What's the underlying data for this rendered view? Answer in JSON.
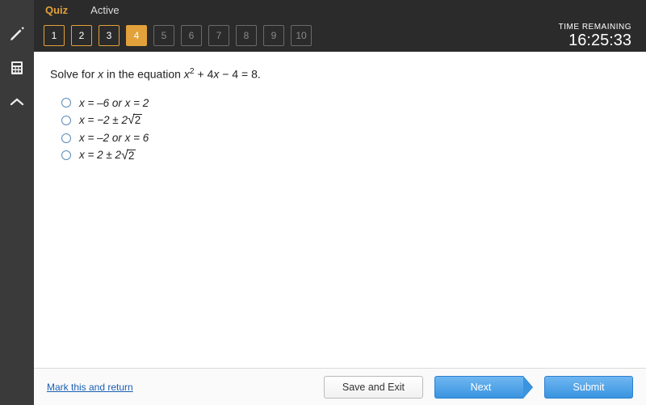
{
  "tabs": {
    "active": "Quiz",
    "other": "Active"
  },
  "timer": {
    "label": "TIME REMAINING",
    "value": "16:25:33"
  },
  "questions": [
    {
      "n": "1",
      "state": "done"
    },
    {
      "n": "2",
      "state": "done"
    },
    {
      "n": "3",
      "state": "done"
    },
    {
      "n": "4",
      "state": "current"
    },
    {
      "n": "5",
      "state": "locked"
    },
    {
      "n": "6",
      "state": "locked"
    },
    {
      "n": "7",
      "state": "locked"
    },
    {
      "n": "8",
      "state": "locked"
    },
    {
      "n": "9",
      "state": "locked"
    },
    {
      "n": "10",
      "state": "locked"
    }
  ],
  "question": {
    "lead": "Solve for ",
    "var": "x",
    "mid": " in the equation ",
    "eq_a": "x",
    "eq_b": "2",
    "eq_c": " + 4",
    "eq_d": "x",
    "eq_e": " − 4 = 8",
    "tail": "."
  },
  "options": {
    "a": "x = –6 or x = 2",
    "b_pre": "x = −2 ± 2",
    "b_rad": "2",
    "c": "x = –2 or x = 6",
    "d_pre": "x = 2 ± 2",
    "d_rad": "2"
  },
  "footer": {
    "mark": "Mark this and return",
    "save": "Save and Exit",
    "next": "Next",
    "submit": "Submit"
  },
  "colors": {
    "accent": "#e2a13a",
    "blue": "#3a94e0",
    "rail": "#3a3a3a",
    "header": "#2b2b2b"
  }
}
